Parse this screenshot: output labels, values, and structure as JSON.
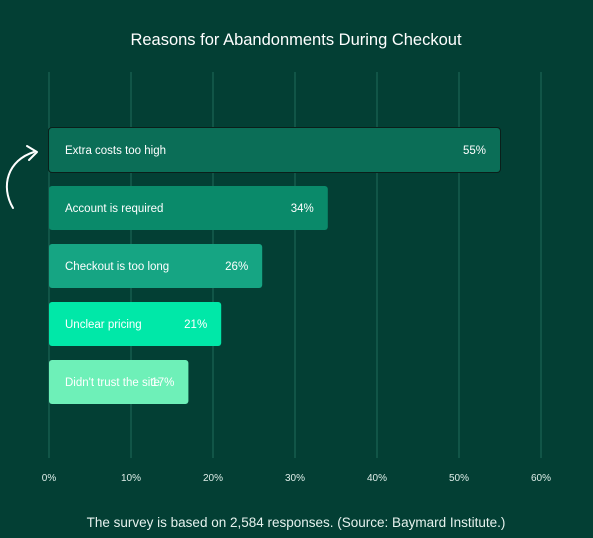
{
  "chart_data": {
    "type": "bar",
    "orientation": "horizontal",
    "title": "Reasons for Abandonments During Checkout",
    "footnote": "The survey is based on 2,584 responses. (Source: Baymard Institute.)",
    "categories": [
      "Extra costs too high",
      "Account is required",
      "Checkout is too long",
      "Unclear pricing",
      "Didn't trust the site"
    ],
    "values": [
      55,
      34,
      26,
      21,
      17
    ],
    "value_labels": [
      "55%",
      "34%",
      "26%",
      "21%",
      "17%"
    ],
    "bar_colors": [
      "#0b6e57",
      "#0a8a6a",
      "#16a583",
      "#00e8a8",
      "#6ef0b8"
    ],
    "label_colors": [
      "#ffffff",
      "#ffffff",
      "#ffffff",
      "#ffffff",
      "#ffffff"
    ],
    "x_ticks": [
      0,
      10,
      20,
      30,
      40,
      50,
      60
    ],
    "x_tick_labels": [
      "0%",
      "10%",
      "20%",
      "30%",
      "40%",
      "50%",
      "60%"
    ],
    "xlim": [
      0,
      60
    ],
    "grid": true,
    "annotation": "curved arrow pointing to top bar"
  }
}
